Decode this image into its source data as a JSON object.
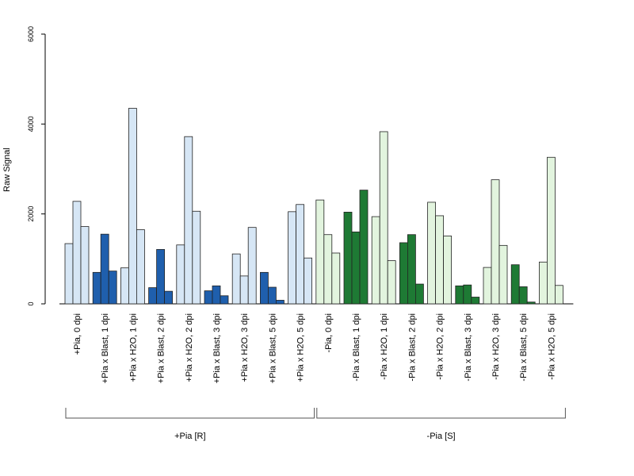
{
  "chart_data": {
    "type": "bar",
    "ylabel": "Raw Signal",
    "ylim": [
      0,
      6000
    ],
    "yticks": [
      0,
      2000,
      4000,
      6000
    ],
    "categories": [
      "+Pia, 0 dpi",
      "+Pia x Blast, 1 dpi",
      "+Pia x H2O, 1 dpi",
      "+Pia x Blast, 2 dpi",
      "+Pia x H2O, 2 dpi",
      "+Pia x Blast, 3 dpi",
      "+Pia x H2O, 3 dpi",
      "+Pia x Blast, 5 dpi",
      "+Pia x H2O, 5 dpi",
      "-Pia, 0 dpi",
      "-Pia x Blast, 1 dpi",
      "-Pia x H2O, 1 dpi",
      "-Pia x Blast, 2 dpi",
      "-Pia x H2O, 2 dpi",
      "-Pia x Blast, 3 dpi",
      "-Pia x H2O, 3 dpi",
      "-Pia x Blast, 5 dpi",
      "-Pia x H2O, 5 dpi"
    ],
    "replicates": [
      [
        1340,
        2280,
        1720
      ],
      [
        700,
        1550,
        730
      ],
      [
        800,
        4350,
        1650
      ],
      [
        360,
        1210,
        280
      ],
      [
        1310,
        3720,
        2060
      ],
      [
        290,
        400,
        180
      ],
      [
        1110,
        620,
        1700
      ],
      [
        700,
        370,
        80
      ],
      [
        2050,
        2210,
        1020
      ],
      [
        2310,
        1540,
        1130
      ],
      [
        2040,
        1600,
        2530
      ],
      [
        1940,
        3830,
        960
      ],
      [
        1360,
        1540,
        440
      ],
      [
        2260,
        1960,
        1510
      ],
      [
        400,
        420,
        150
      ],
      [
        810,
        2760,
        1300
      ],
      [
        870,
        380,
        40
      ],
      [
        930,
        3260,
        410
      ]
    ],
    "bar_colors": [
      "#d6e6f5",
      "#1f5fad",
      "#d6e6f5",
      "#1f5fad",
      "#d6e6f5",
      "#1f5fad",
      "#d6e6f5",
      "#1f5fad",
      "#d6e6f5",
      "#e2f4de",
      "#1e7a34",
      "#e2f4de",
      "#1e7a34",
      "#e2f4de",
      "#1e7a34",
      "#e2f4de",
      "#1e7a34",
      "#e2f4de"
    ],
    "groups": [
      {
        "label": "+Pia [R]",
        "from": 0,
        "to": 8
      },
      {
        "label": "-Pia [S]",
        "from": 9,
        "to": 17
      }
    ]
  }
}
